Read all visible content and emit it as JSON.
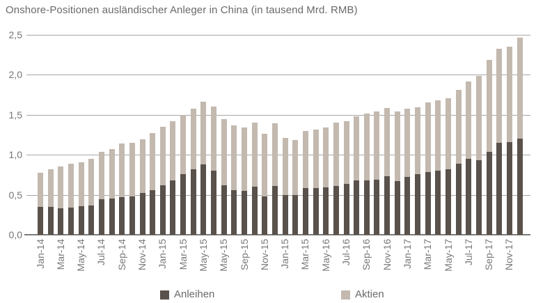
{
  "title": "Onshore-Positionen ausländischer Anleger in China (in tausend Mrd. RMB)",
  "colors": {
    "anleihen": "#59514b",
    "aktien": "#c3b9af",
    "gridline": "#a6a6a6",
    "axis": "#7b7b7b",
    "text": "#757575"
  },
  "legend": {
    "items": [
      {
        "label": "Anleihen",
        "color": "#59514b"
      },
      {
        "label": "Aktien",
        "color": "#c3b9af"
      }
    ]
  },
  "chart_data": {
    "type": "bar",
    "stacked": true,
    "title": "Onshore-Positionen ausländischer Anleger in China (in tausend Mrd. RMB)",
    "ylabel": "tausend Mrd. RMB",
    "ylim": [
      0,
      2.5
    ],
    "grid": true,
    "legend_position": "bottom",
    "y_tick_labels": [
      "0,0",
      "0,5",
      "1,0",
      "1,5",
      "2,0",
      "2,5"
    ],
    "x_tick_labels": [
      "Jan-14",
      "Mar-14",
      "May-14",
      "Jul-14",
      "Sep-14",
      "Nov-14",
      "Jan-15",
      "Mar-15",
      "May-15",
      "May-15",
      "Sep-15",
      "Nov-15",
      "Jan-15",
      "Mar-15",
      "May-16",
      "Jul-16",
      "Sep-16",
      "Nov-16",
      "Jan-17",
      "Mar-17",
      "May-17",
      "Jul-17",
      "Sep-17",
      "Nov-17"
    ],
    "bars_per_label": 2,
    "series": [
      {
        "name": "Anleihen",
        "color": "#59514b",
        "values": [
          0.35,
          0.35,
          0.33,
          0.34,
          0.36,
          0.37,
          0.44,
          0.45,
          0.47,
          0.48,
          0.52,
          0.56,
          0.62,
          0.68,
          0.76,
          0.82,
          0.88,
          0.8,
          0.62,
          0.56,
          0.55,
          0.6,
          0.48,
          0.61,
          0.5,
          0.5,
          0.58,
          0.58,
          0.59,
          0.61,
          0.64,
          0.68,
          0.68,
          0.69,
          0.73,
          0.67,
          0.72,
          0.76,
          0.78,
          0.8,
          0.82,
          0.89,
          0.95,
          0.93,
          1.04,
          1.15,
          1.16,
          1.2
        ]
      },
      {
        "name": "Aktien",
        "color": "#c3b9af",
        "values": [
          0.43,
          0.47,
          0.52,
          0.55,
          0.55,
          0.58,
          0.59,
          0.62,
          0.67,
          0.67,
          0.67,
          0.71,
          0.73,
          0.74,
          0.74,
          0.76,
          0.78,
          0.8,
          0.83,
          0.81,
          0.79,
          0.8,
          0.78,
          0.78,
          0.71,
          0.69,
          0.71,
          0.73,
          0.75,
          0.79,
          0.78,
          0.8,
          0.84,
          0.85,
          0.85,
          0.87,
          0.85,
          0.84,
          0.87,
          0.88,
          0.89,
          0.92,
          0.97,
          1.05,
          1.15,
          1.18,
          1.19,
          1.26
        ]
      }
    ]
  }
}
